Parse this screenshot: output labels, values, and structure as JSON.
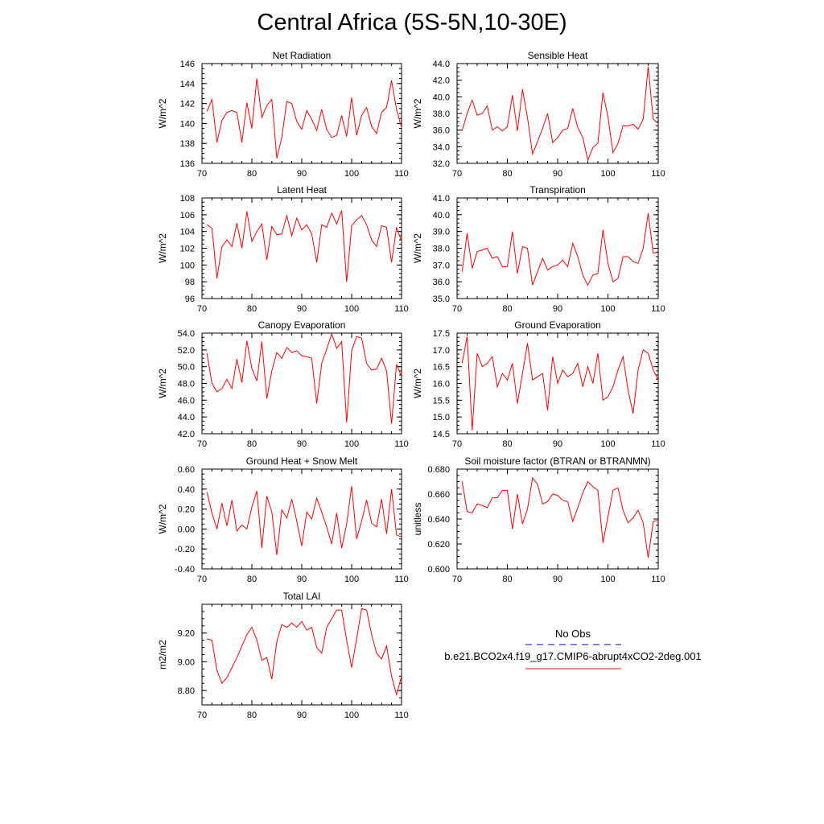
{
  "title": "Central Africa (5S-5N,10-30E)",
  "line_color": "#ff0000",
  "obs_color": "#0000aa",
  "legend": {
    "obs_label": "No Obs",
    "model_label": "b.e21.BCO2x4.f19_g17.CMIP6-abrupt4xCO2-2deg.001"
  },
  "chart_data": [
    {
      "type": "line",
      "title": "Net Radiation",
      "ylabel": "W/m^2",
      "xlim": [
        70,
        110
      ],
      "ylim": [
        136,
        146
      ],
      "xticks": [
        70,
        80,
        90,
        100,
        110
      ],
      "yticks": [
        "136",
        "138",
        "140",
        "142",
        "144",
        "146"
      ],
      "x": [
        71,
        72,
        73,
        74,
        75,
        76,
        77,
        78,
        79,
        80,
        81,
        82,
        83,
        84,
        85,
        86,
        87,
        88,
        89,
        90,
        91,
        92,
        93,
        94,
        95,
        96,
        97,
        98,
        99,
        100,
        101,
        102,
        103,
        104,
        105,
        106,
        107,
        108,
        109,
        110
      ],
      "series": [
        {
          "values": [
            141.2,
            142.4,
            138.1,
            140.3,
            141.1,
            141.3,
            141.1,
            138.1,
            142.1,
            139.5,
            144.5,
            140.6,
            141.8,
            142.4,
            136.5,
            138.6,
            142.2,
            142.0,
            140.2,
            139.4,
            141.3,
            140.4,
            139.3,
            141.4,
            139.4,
            138.6,
            138.8,
            140.8,
            138.7,
            142.6,
            138.8,
            140.8,
            141.6,
            139.7,
            139.0,
            141.1,
            141.6,
            144.3,
            141.4,
            139.6
          ]
        }
      ]
    },
    {
      "type": "line",
      "title": "Sensible Heat",
      "ylabel": "W/m^2",
      "xlim": [
        70,
        110
      ],
      "ylim": [
        32,
        44
      ],
      "xticks": [
        70,
        80,
        90,
        100,
        110
      ],
      "yticks": [
        "32.0",
        "34.0",
        "36.0",
        "38.0",
        "40.0",
        "42.0",
        "44.0"
      ],
      "x": [
        71,
        72,
        73,
        74,
        75,
        76,
        77,
        78,
        79,
        80,
        81,
        82,
        83,
        84,
        85,
        86,
        87,
        88,
        89,
        90,
        91,
        92,
        93,
        94,
        95,
        96,
        97,
        98,
        99,
        100,
        101,
        102,
        103,
        104,
        105,
        106,
        107,
        108,
        109,
        110
      ],
      "series": [
        {
          "values": [
            35.9,
            38.0,
            39.6,
            37.8,
            38.0,
            38.9,
            36.0,
            36.4,
            35.9,
            36.4,
            40.2,
            35.9,
            40.9,
            37.5,
            33.1,
            34.6,
            36.2,
            38.0,
            34.5,
            35.1,
            36.0,
            36.2,
            38.6,
            36.3,
            35.1,
            32.4,
            33.9,
            34.4,
            40.5,
            37.6,
            33.3,
            34.4,
            36.5,
            36.5,
            36.7,
            36.1,
            37.3,
            43.6,
            37.3,
            36.8
          ]
        }
      ]
    },
    {
      "type": "line",
      "title": "Latent Heat",
      "ylabel": "W/m^2",
      "xlim": [
        70,
        110
      ],
      "ylim": [
        96,
        108
      ],
      "xticks": [
        70,
        80,
        90,
        100,
        110
      ],
      "yticks": [
        "96",
        "98",
        "100",
        "102",
        "104",
        "106",
        "108"
      ],
      "x": [
        71,
        72,
        73,
        74,
        75,
        76,
        77,
        78,
        79,
        80,
        81,
        82,
        83,
        84,
        85,
        86,
        87,
        88,
        89,
        90,
        91,
        92,
        93,
        94,
        95,
        96,
        97,
        98,
        99,
        100,
        101,
        102,
        103,
        104,
        105,
        106,
        107,
        108,
        109,
        110
      ],
      "series": [
        {
          "values": [
            104.8,
            104.4,
            98.4,
            102.2,
            103.0,
            102.2,
            105.0,
            102.0,
            106.4,
            102.8,
            104.0,
            104.9,
            100.6,
            104.6,
            103.6,
            103.7,
            105.9,
            103.5,
            105.6,
            104.2,
            104.8,
            103.7,
            100.3,
            104.8,
            104.5,
            106.2,
            104.9,
            106.5,
            98.0,
            104.7,
            105.4,
            105.9,
            104.8,
            103.0,
            102.2,
            104.7,
            104.5,
            100.3,
            104.5,
            102.8
          ]
        }
      ]
    },
    {
      "type": "line",
      "title": "Transpiration",
      "ylabel": "W/m^2",
      "xlim": [
        70,
        110
      ],
      "ylim": [
        35,
        41
      ],
      "xticks": [
        70,
        80,
        90,
        100,
        110
      ],
      "yticks": [
        "35.0",
        "36.0",
        "37.0",
        "38.0",
        "39.0",
        "40.0",
        "41.0"
      ],
      "x": [
        71,
        72,
        73,
        74,
        75,
        76,
        77,
        78,
        79,
        80,
        81,
        82,
        83,
        84,
        85,
        86,
        87,
        88,
        89,
        90,
        91,
        92,
        93,
        94,
        95,
        96,
        97,
        98,
        99,
        100,
        101,
        102,
        103,
        104,
        105,
        106,
        107,
        108,
        109,
        110
      ],
      "series": [
        {
          "values": [
            36.6,
            38.9,
            36.8,
            37.8,
            37.9,
            38.0,
            37.4,
            37.5,
            36.9,
            36.9,
            39.0,
            36.5,
            38.1,
            38.0,
            35.8,
            36.6,
            37.4,
            36.7,
            36.9,
            37.0,
            37.3,
            36.9,
            38.3,
            37.5,
            36.4,
            35.8,
            36.4,
            36.5,
            39.1,
            37.1,
            36.0,
            36.2,
            37.5,
            37.5,
            37.2,
            37.1,
            38.0,
            40.1,
            37.7,
            37.8
          ]
        }
      ]
    },
    {
      "type": "line",
      "title": "Canopy Evaporation",
      "ylabel": "W/m^2",
      "xlim": [
        70,
        110
      ],
      "ylim": [
        42,
        54
      ],
      "xticks": [
        70,
        80,
        90,
        100,
        110
      ],
      "yticks": [
        "42.0",
        "44.0",
        "46.0",
        "48.0",
        "50.0",
        "52.0",
        "54.0"
      ],
      "x": [
        71,
        72,
        73,
        74,
        75,
        76,
        77,
        78,
        79,
        80,
        81,
        82,
        83,
        84,
        85,
        86,
        87,
        88,
        89,
        90,
        91,
        92,
        93,
        94,
        95,
        96,
        97,
        98,
        99,
        100,
        101,
        102,
        103,
        104,
        105,
        106,
        107,
        108,
        109,
        110
      ],
      "series": [
        {
          "values": [
            51.6,
            48.0,
            47.0,
            47.4,
            48.5,
            47.4,
            50.9,
            48.1,
            53.1,
            49.8,
            48.3,
            53.0,
            46.2,
            49.5,
            51.7,
            51.0,
            52.3,
            51.7,
            51.9,
            51.3,
            51.2,
            51.0,
            45.6,
            50.4,
            52.1,
            53.9,
            52.2,
            53.0,
            43.3,
            51.9,
            53.6,
            53.4,
            50.4,
            49.6,
            49.7,
            51.0,
            49.5,
            43.2,
            50.3,
            48.8
          ]
        }
      ]
    },
    {
      "type": "line",
      "title": "Ground Evaporation",
      "ylabel": "W/m^2",
      "xlim": [
        70,
        110
      ],
      "ylim": [
        14.5,
        17.5
      ],
      "xticks": [
        70,
        80,
        90,
        100,
        110
      ],
      "yticks": [
        "14.5",
        "15.0",
        "15.5",
        "16.0",
        "16.5",
        "17.0",
        "17.5"
      ],
      "x": [
        71,
        72,
        73,
        74,
        75,
        76,
        77,
        78,
        79,
        80,
        81,
        82,
        83,
        84,
        85,
        86,
        87,
        88,
        89,
        90,
        91,
        92,
        93,
        94,
        95,
        96,
        97,
        98,
        99,
        100,
        101,
        102,
        103,
        104,
        105,
        106,
        107,
        108,
        109,
        110
      ],
      "series": [
        {
          "values": [
            16.6,
            17.4,
            14.6,
            16.9,
            16.5,
            16.6,
            16.8,
            15.9,
            16.3,
            16.1,
            16.6,
            15.4,
            16.3,
            17.2,
            16.1,
            16.2,
            16.3,
            15.2,
            16.8,
            16.0,
            16.4,
            16.2,
            16.3,
            16.6,
            15.9,
            16.5,
            16.0,
            16.9,
            15.5,
            15.6,
            15.9,
            16.4,
            16.8,
            15.8,
            15.1,
            16.4,
            17.0,
            16.9,
            16.4,
            16.1
          ]
        }
      ]
    },
    {
      "type": "line",
      "title": "Ground Heat + Snow Melt",
      "ylabel": "W/m^2",
      "xlim": [
        70,
        110
      ],
      "ylim": [
        -0.4,
        0.6
      ],
      "xticks": [
        70,
        80,
        90,
        100,
        110
      ],
      "yticks": [
        "-0.40",
        "-0.20",
        "0.00",
        "0.20",
        "0.40",
        "0.60"
      ],
      "x": [
        71,
        72,
        73,
        74,
        75,
        76,
        77,
        78,
        79,
        80,
        81,
        82,
        83,
        84,
        85,
        86,
        87,
        88,
        89,
        90,
        91,
        92,
        93,
        94,
        95,
        96,
        97,
        98,
        99,
        100,
        101,
        102,
        103,
        104,
        105,
        106,
        107,
        108,
        109,
        110
      ],
      "series": [
        {
          "values": [
            0.37,
            0.16,
            0.0,
            0.26,
            0.03,
            0.29,
            -0.02,
            0.04,
            0.0,
            0.22,
            0.38,
            -0.19,
            0.33,
            0.17,
            -0.26,
            0.19,
            0.11,
            0.3,
            0.08,
            -0.17,
            0.17,
            0.1,
            0.31,
            0.17,
            0.02,
            -0.15,
            0.16,
            -0.19,
            0.05,
            0.43,
            -0.1,
            0.08,
            0.29,
            0.06,
            0.02,
            0.3,
            -0.05,
            0.4,
            -0.06,
            -0.08
          ]
        }
      ]
    },
    {
      "type": "line",
      "title": "Soil moisture factor (BTRAN or BTRANMN)",
      "ylabel": "unitless",
      "xlim": [
        70,
        110
      ],
      "ylim": [
        0.6,
        0.68
      ],
      "xticks": [
        70,
        80,
        90,
        100,
        110
      ],
      "yticks": [
        "0.600",
        "0.620",
        "0.640",
        "0.660",
        "0.680"
      ],
      "x": [
        71,
        72,
        73,
        74,
        75,
        76,
        77,
        78,
        79,
        80,
        81,
        82,
        83,
        84,
        85,
        86,
        87,
        88,
        89,
        90,
        91,
        92,
        93,
        94,
        95,
        96,
        97,
        98,
        99,
        100,
        101,
        102,
        103,
        104,
        105,
        106,
        107,
        108,
        109,
        110
      ],
      "series": [
        {
          "values": [
            0.67,
            0.646,
            0.645,
            0.652,
            0.651,
            0.649,
            0.657,
            0.657,
            0.663,
            0.663,
            0.632,
            0.66,
            0.636,
            0.648,
            0.673,
            0.668,
            0.652,
            0.654,
            0.66,
            0.659,
            0.655,
            0.654,
            0.638,
            0.649,
            0.661,
            0.67,
            0.666,
            0.663,
            0.621,
            0.642,
            0.663,
            0.665,
            0.647,
            0.637,
            0.641,
            0.647,
            0.637,
            0.609,
            0.638,
            0.639
          ]
        }
      ]
    },
    {
      "type": "line",
      "title": "Total LAI",
      "ylabel": "m2/m2",
      "xlim": [
        70,
        110
      ],
      "ylim": [
        8.7,
        9.4
      ],
      "xticks": [
        70,
        80,
        90,
        100,
        110
      ],
      "yticks": [
        "8.80",
        "9.00",
        "9.20"
      ],
      "x": [
        71,
        72,
        73,
        74,
        75,
        76,
        77,
        78,
        79,
        80,
        81,
        82,
        83,
        84,
        85,
        86,
        87,
        88,
        89,
        90,
        91,
        92,
        93,
        94,
        95,
        96,
        97,
        98,
        99,
        100,
        101,
        102,
        103,
        104,
        105,
        106,
        107,
        108,
        109,
        110
      ],
      "series": [
        {
          "values": [
            9.16,
            9.15,
            8.94,
            8.85,
            8.89,
            8.96,
            9.03,
            9.11,
            9.19,
            9.24,
            9.15,
            9.01,
            9.03,
            8.88,
            9.14,
            9.26,
            9.24,
            9.27,
            9.24,
            9.28,
            9.22,
            9.24,
            9.1,
            9.06,
            9.24,
            9.3,
            9.36,
            9.36,
            9.15,
            8.96,
            9.16,
            9.37,
            9.36,
            9.19,
            9.06,
            9.02,
            9.11,
            8.9,
            8.77,
            8.9
          ]
        }
      ]
    }
  ]
}
